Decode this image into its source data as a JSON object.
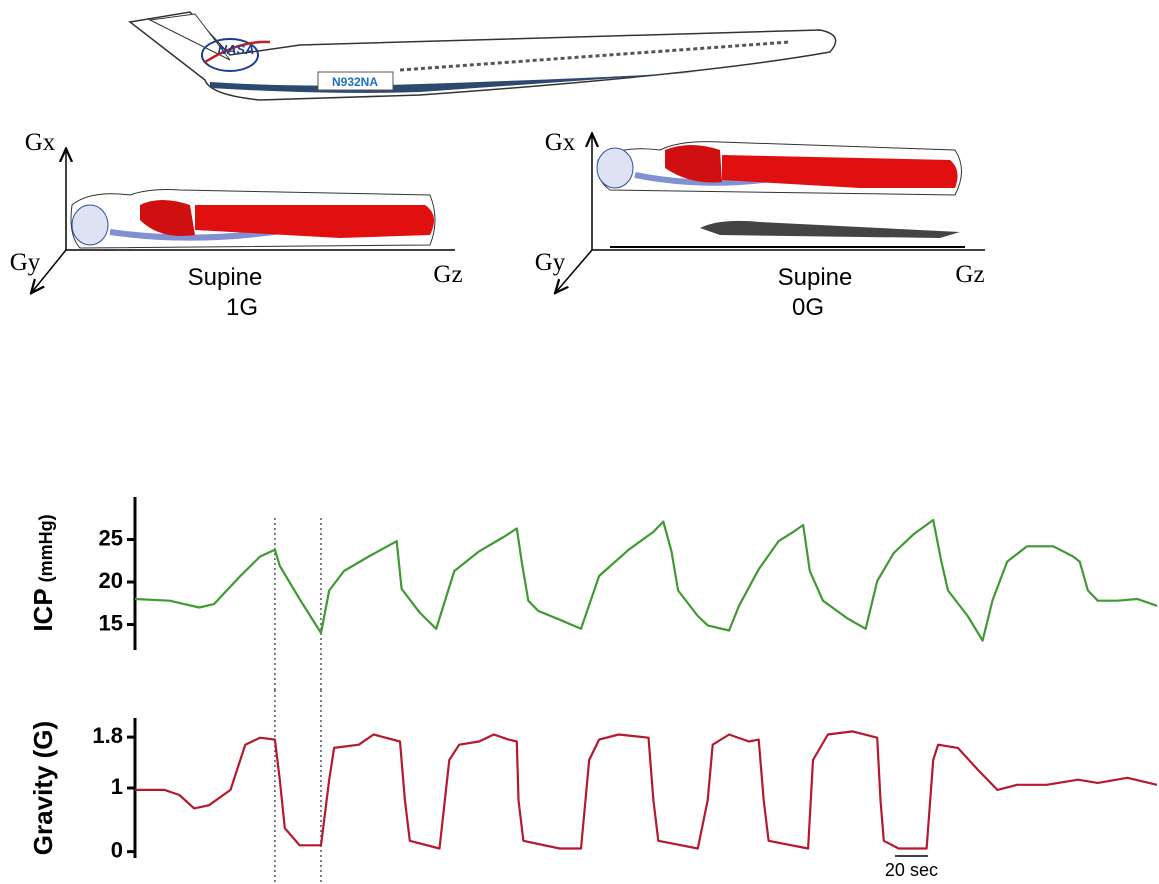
{
  "illustration": {
    "aircraft_label": "N932NA",
    "logo": "NASA",
    "panels": [
      {
        "vertical_axis": "Gx",
        "depth_axis": "Gy",
        "long_axis": "Gz",
        "posture": "Supine",
        "gravity": "1G"
      },
      {
        "vertical_axis": "Gx",
        "depth_axis": "Gy",
        "long_axis": "Gz",
        "posture": "Supine",
        "gravity": "0G"
      }
    ]
  },
  "chart_data": [
    {
      "type": "line",
      "ylabel": "ICP",
      "ylabel_unit": "(mmHg)",
      "x": [
        0,
        21,
        39,
        48,
        64,
        76,
        85,
        88,
        100,
        113,
        118,
        127,
        142,
        159,
        162,
        173,
        183,
        194,
        209,
        224,
        232,
        235,
        239,
        245,
        259,
        271,
        282,
        300,
        315,
        321,
        326,
        330,
        342,
        348,
        361,
        367,
        379,
        391,
        400,
        406,
        410,
        418,
        433,
        444,
        451,
        461,
        473,
        485,
        490,
        494,
        506,
        515,
        521,
        530,
        542,
        558,
        570,
        574,
        579,
        585,
        597,
        609,
        621
      ],
      "series": [
        {
          "name": "ICP",
          "color": "#3f9a32",
          "values": [
            18.0,
            17.8,
            17.0,
            17.4,
            20.7,
            23.0,
            23.8,
            21.9,
            18.0,
            14.0,
            19.0,
            21.3,
            23.0,
            24.8,
            19.2,
            16.4,
            14.5,
            21.3,
            23.6,
            25.3,
            26.3,
            22.4,
            17.8,
            16.6,
            15.5,
            14.5,
            20.7,
            23.8,
            25.9,
            27.1,
            23.6,
            19.0,
            16.0,
            14.9,
            14.3,
            17.2,
            21.5,
            24.8,
            25.9,
            26.7,
            21.3,
            17.8,
            15.7,
            14.5,
            20.1,
            23.4,
            25.6,
            27.3,
            22.4,
            19.0,
            16.0,
            13.1,
            17.8,
            22.4,
            24.2,
            24.2,
            23.0,
            22.4,
            19.0,
            17.8,
            17.8,
            18.0,
            17.2
          ]
        }
      ],
      "xlim": [
        0,
        621
      ],
      "ylim": [
        12,
        30
      ],
      "yticks": [
        15,
        20,
        25
      ],
      "vlines": [
        85,
        113
      ]
    },
    {
      "type": "line",
      "ylabel": "Gravity (G)",
      "x": [
        0,
        18,
        27,
        36,
        45,
        58,
        67,
        76,
        85,
        88,
        91,
        100,
        113,
        118,
        121,
        136,
        145,
        161,
        164,
        167,
        185,
        191,
        197,
        209,
        218,
        227,
        232,
        233,
        236,
        258,
        271,
        276,
        282,
        294,
        312,
        315,
        318,
        342,
        348,
        351,
        361,
        373,
        379,
        382,
        385,
        409,
        412,
        421,
        436,
        451,
        453,
        455,
        464,
        481,
        485,
        488,
        500,
        512,
        524,
        536,
        554,
        573,
        585,
        603,
        621
      ],
      "series": [
        {
          "name": "Gravity",
          "color": "#b5192e",
          "values": [
            0.97,
            0.97,
            0.89,
            0.68,
            0.73,
            0.97,
            1.68,
            1.79,
            1.76,
            1.13,
            0.37,
            0.1,
            0.1,
            1.13,
            1.63,
            1.68,
            1.84,
            1.73,
            0.81,
            0.17,
            0.05,
            1.44,
            1.68,
            1.73,
            1.84,
            1.76,
            1.73,
            0.81,
            0.17,
            0.05,
            0.05,
            1.44,
            1.76,
            1.84,
            1.79,
            0.81,
            0.17,
            0.05,
            0.81,
            1.68,
            1.84,
            1.73,
            1.76,
            0.81,
            0.17,
            0.05,
            1.44,
            1.84,
            1.89,
            1.79,
            0.81,
            0.17,
            0.05,
            0.05,
            1.44,
            1.68,
            1.63,
            1.29,
            0.97,
            1.05,
            1.05,
            1.13,
            1.08,
            1.16,
            1.05
          ]
        }
      ],
      "xlim": [
        0,
        621
      ],
      "ylim": [
        -0.1,
        2.1
      ],
      "yticks": [
        0,
        1,
        1.8
      ],
      "vlines": [
        85,
        113
      ],
      "scale_bar": {
        "value": 20,
        "label": "20 sec"
      }
    }
  ]
}
